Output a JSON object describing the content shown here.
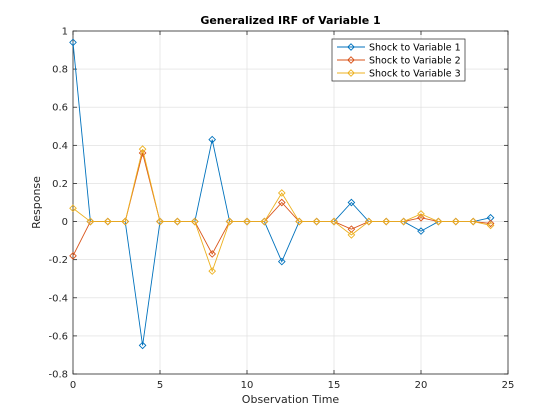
{
  "chart_data": {
    "type": "line",
    "title": "Generalized IRF of Variable 1",
    "xlabel": "Observation Time",
    "ylabel": "Response",
    "xlim": [
      0,
      25
    ],
    "ylim": [
      -0.8,
      1
    ],
    "xticks": [
      0,
      5,
      10,
      15,
      20,
      25
    ],
    "yticks": [
      -0.8,
      -0.6,
      -0.4,
      -0.2,
      0,
      0.2,
      0.4,
      0.6,
      0.8,
      1
    ],
    "xtick_labels": [
      "0",
      "5",
      "10",
      "15",
      "20",
      "25"
    ],
    "ytick_labels": [
      "-0.8",
      "-0.6",
      "-0.4",
      "-0.2",
      "0",
      "0.2",
      "0.4",
      "0.6",
      "0.8",
      "1"
    ],
    "grid": true,
    "legend_position": "top-right",
    "marker": "diamond",
    "x": [
      0,
      1,
      2,
      3,
      4,
      5,
      6,
      7,
      8,
      9,
      10,
      11,
      12,
      13,
      14,
      15,
      16,
      17,
      18,
      19,
      20,
      21,
      22,
      23,
      24
    ],
    "series": [
      {
        "name": "Shock to Variable 1",
        "color": "#0072BD",
        "values": [
          0.94,
          0,
          0,
          0,
          -0.65,
          0,
          0,
          0,
          0.43,
          0,
          0,
          0,
          -0.21,
          0,
          0,
          0,
          0.1,
          0,
          0,
          0,
          -0.05,
          0,
          0,
          0,
          0.02
        ]
      },
      {
        "name": "Shock to Variable 2",
        "color": "#D95319",
        "values": [
          -0.18,
          0,
          0,
          0,
          0.36,
          0,
          0,
          0,
          -0.17,
          0,
          0,
          0,
          0.1,
          0,
          0,
          0,
          -0.04,
          0,
          0,
          0,
          0.02,
          0,
          0,
          0,
          -0.01
        ]
      },
      {
        "name": "Shock to Variable 3",
        "color": "#EDB120",
        "values": [
          0.07,
          0,
          0,
          0,
          0.38,
          0,
          0,
          0,
          -0.26,
          0,
          0,
          0,
          0.15,
          0,
          0,
          0,
          -0.07,
          0,
          0,
          0,
          0.04,
          0,
          0,
          0,
          -0.02
        ]
      }
    ]
  }
}
